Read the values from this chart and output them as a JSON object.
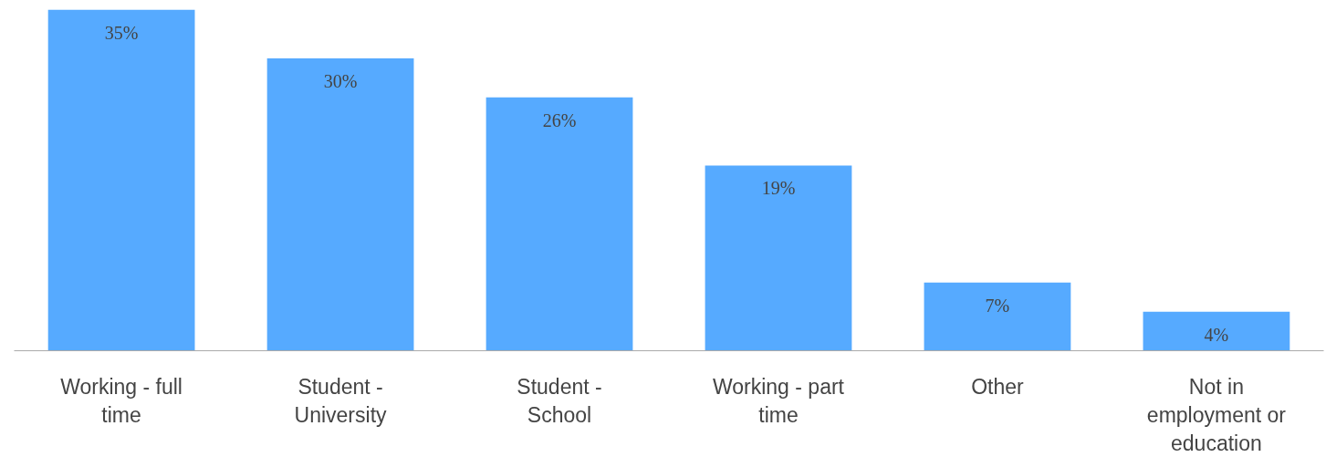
{
  "chart_data": {
    "type": "bar",
    "categories": [
      "Working - full time",
      "Student - University",
      "Student - School",
      "Working - part time",
      "Other",
      "Not in employment or education"
    ],
    "values": [
      35,
      30,
      26,
      19,
      7,
      4
    ],
    "value_labels": [
      "35%",
      "30%",
      "26%",
      "19%",
      "7%",
      "4%"
    ],
    "color": "#56aaff"
  }
}
